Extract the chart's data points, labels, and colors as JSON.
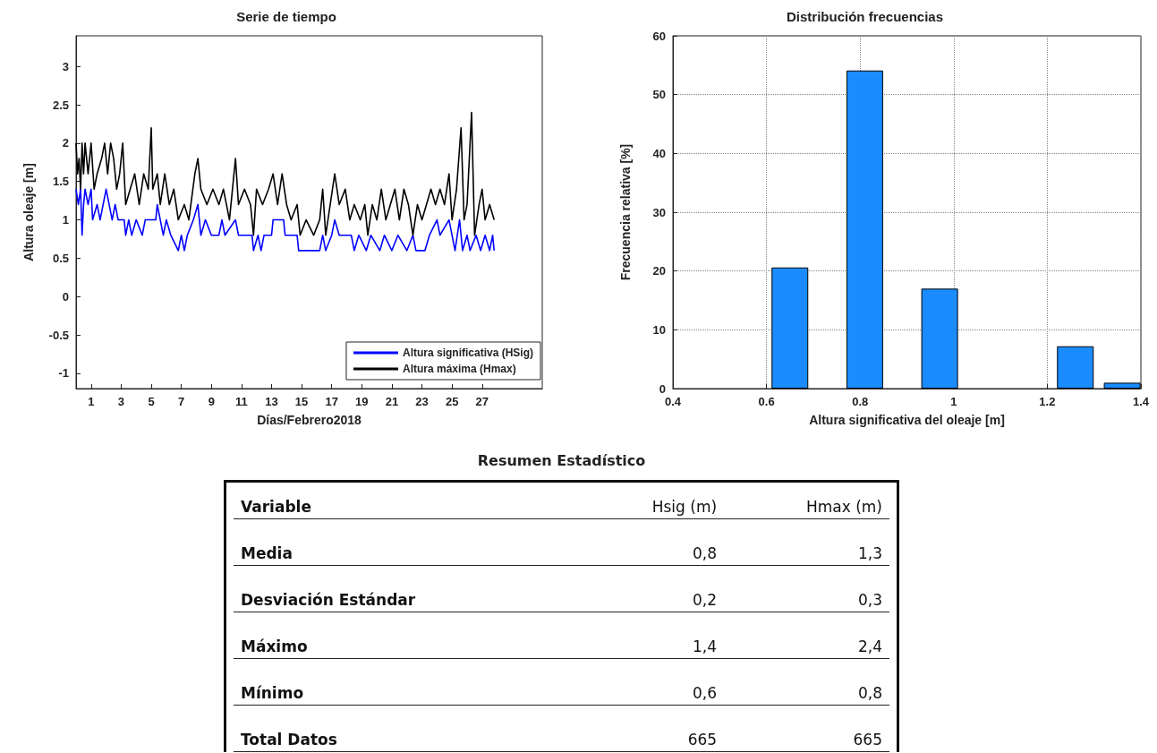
{
  "chart_data": [
    {
      "type": "line",
      "title": "Serie de tiempo",
      "xlabel": "Días/Febrero2018",
      "ylabel": "Altura oleaje [m]",
      "xlim": [
        0,
        31
      ],
      "xticks": [
        1,
        3,
        5,
        7,
        9,
        11,
        13,
        15,
        17,
        19,
        21,
        23,
        25,
        27
      ],
      "ylim": [
        -1.2,
        3.4
      ],
      "yticks": [
        -1,
        -0.5,
        0,
        0.5,
        1,
        1.5,
        2,
        2.5,
        3
      ],
      "grid": false,
      "legend": "bottom right",
      "marker": "none",
      "series": [
        {
          "name": "Altura significativa (HSig)",
          "color": "#0000ff",
          "x": [
            0,
            0.15,
            0.3,
            0.4,
            0.5,
            0.6,
            0.8,
            1.0,
            1.1,
            1.4,
            1.6,
            2.0,
            2.2,
            2.4,
            2.6,
            2.8,
            3.2,
            3.3,
            3.5,
            3.7,
            4.0,
            4.4,
            4.6,
            5.3,
            5.4,
            5.6,
            5.8,
            6.0,
            6.3,
            6.8,
            7.0,
            7.2,
            7.4,
            7.8,
            8.1,
            8.3,
            8.6,
            9.0,
            9.5,
            9.7,
            9.9,
            10.6,
            10.8,
            11.7,
            11.8,
            12.1,
            12.3,
            12.5,
            13.0,
            13.1,
            13.8,
            13.9,
            14.7,
            14.8,
            16.2,
            16.4,
            16.6,
            17.0,
            17.2,
            17.5,
            18.3,
            18.5,
            18.8,
            19.3,
            19.6,
            20.2,
            20.5,
            21.0,
            21.4,
            22.0,
            22.4,
            22.6,
            23.2,
            23.5,
            24.0,
            24.2,
            24.8,
            25.0,
            25.2,
            25.5,
            25.7,
            26.0,
            26.2,
            26.6,
            26.9,
            27.2,
            27.5,
            27.7,
            27.8
          ],
          "values": [
            1.4,
            1.2,
            1.4,
            0.8,
            1.2,
            1.4,
            1.2,
            1.4,
            1.0,
            1.2,
            1.0,
            1.4,
            1.2,
            1.0,
            1.2,
            1.0,
            1.0,
            0.8,
            1.0,
            0.8,
            1.0,
            0.8,
            1.0,
            1.0,
            1.2,
            1.0,
            0.8,
            1.0,
            0.8,
            0.6,
            0.8,
            0.6,
            0.8,
            1.0,
            1.2,
            0.8,
            1.0,
            0.8,
            0.8,
            1.0,
            0.8,
            1.0,
            0.8,
            0.8,
            0.6,
            0.8,
            0.6,
            0.8,
            0.8,
            1.0,
            1.0,
            0.8,
            0.8,
            0.6,
            0.6,
            0.8,
            0.6,
            0.8,
            1.0,
            0.8,
            0.8,
            0.6,
            0.8,
            0.6,
            0.8,
            0.6,
            0.8,
            0.6,
            0.8,
            0.6,
            0.8,
            0.6,
            0.6,
            0.8,
            1.0,
            0.8,
            1.0,
            0.8,
            0.6,
            1.0,
            0.6,
            0.8,
            0.6,
            0.8,
            0.6,
            0.8,
            0.6,
            0.8,
            0.6
          ]
        },
        {
          "name": "Altura máxima (Hmax)",
          "color": "#000000",
          "x": [
            0,
            0.1,
            0.2,
            0.3,
            0.4,
            0.5,
            0.6,
            0.8,
            1.0,
            1.2,
            1.4,
            1.7,
            1.9,
            2.1,
            2.3,
            2.5,
            2.7,
            2.9,
            3.1,
            3.3,
            3.6,
            3.9,
            4.2,
            4.5,
            4.8,
            5.0,
            5.1,
            5.4,
            5.6,
            5.9,
            6.2,
            6.5,
            6.8,
            7.2,
            7.5,
            7.9,
            8.1,
            8.3,
            8.7,
            9.1,
            9.5,
            9.8,
            10.2,
            10.6,
            10.8,
            11.2,
            11.6,
            11.8,
            12.0,
            12.4,
            12.8,
            13.1,
            13.4,
            13.7,
            14.0,
            14.3,
            14.7,
            14.9,
            15.3,
            15.8,
            16.2,
            16.4,
            16.6,
            16.9,
            17.2,
            17.5,
            17.9,
            18.2,
            18.5,
            18.9,
            19.2,
            19.4,
            19.7,
            20.0,
            20.3,
            20.6,
            20.9,
            21.2,
            21.5,
            21.8,
            22.1,
            22.4,
            22.7,
            23.0,
            23.3,
            23.6,
            23.9,
            24.2,
            24.5,
            24.8,
            25.0,
            25.3,
            25.6,
            25.8,
            26.0,
            26.3,
            26.5,
            26.8,
            27.0,
            27.2,
            27.5,
            27.8
          ],
          "values": [
            2.0,
            1.6,
            1.8,
            1.4,
            2.0,
            1.6,
            2.0,
            1.6,
            2.0,
            1.4,
            1.6,
            1.8,
            2.0,
            1.6,
            2.0,
            1.8,
            1.4,
            1.6,
            2.0,
            1.2,
            1.4,
            1.6,
            1.2,
            1.6,
            1.4,
            2.2,
            1.4,
            1.6,
            1.2,
            1.6,
            1.2,
            1.4,
            1.0,
            1.2,
            1.0,
            1.6,
            1.8,
            1.4,
            1.2,
            1.4,
            1.2,
            1.4,
            1.0,
            1.8,
            1.2,
            1.4,
            1.2,
            0.8,
            1.4,
            1.2,
            1.4,
            1.6,
            1.2,
            1.6,
            1.2,
            1.0,
            1.2,
            0.8,
            1.0,
            0.8,
            1.0,
            1.4,
            0.8,
            1.2,
            1.6,
            1.2,
            1.4,
            1.0,
            1.2,
            1.0,
            1.2,
            0.8,
            1.2,
            1.0,
            1.4,
            1.0,
            1.2,
            1.4,
            1.0,
            1.4,
            1.2,
            0.8,
            1.2,
            1.0,
            1.2,
            1.4,
            1.2,
            1.4,
            1.2,
            1.6,
            1.0,
            1.4,
            2.2,
            1.0,
            1.2,
            2.4,
            0.8,
            1.2,
            1.4,
            1.0,
            1.2,
            1.0
          ]
        }
      ]
    },
    {
      "type": "bar",
      "title": "Distribución frecuencias",
      "xlabel": "Altura significativa del oleaje [m]",
      "ylabel": "Frecuencia relativa [%]",
      "x": [
        0.65,
        0.81,
        0.97,
        1.26,
        1.36
      ],
      "values": [
        20.6,
        54.1,
        17.0,
        7.2,
        1.0
      ],
      "color": "#1a8cff",
      "xlim": [
        0.4,
        1.4
      ],
      "xticks": [
        0.4,
        0.6,
        0.8,
        1,
        1.2,
        1.4
      ],
      "ylim": [
        0,
        60
      ],
      "yticks": [
        0,
        10,
        20,
        30,
        40,
        50,
        60
      ],
      "grid": true
    },
    {
      "type": "other",
      "title": "Resumen Estadístico",
      "categories": [
        "Variable",
        "Hsig (m)",
        "Hmax (m)"
      ],
      "y_categories": [
        "Media",
        "Desviación Estándar",
        "Máximo",
        "Mínimo",
        "Total Datos"
      ],
      "cell_labels": [
        [
          "0,8",
          "1,3"
        ],
        [
          "0,2",
          "0,3"
        ],
        [
          "1,4",
          "2,4"
        ],
        [
          "0,6",
          "0,8"
        ],
        [
          "665",
          "665"
        ]
      ]
    }
  ]
}
